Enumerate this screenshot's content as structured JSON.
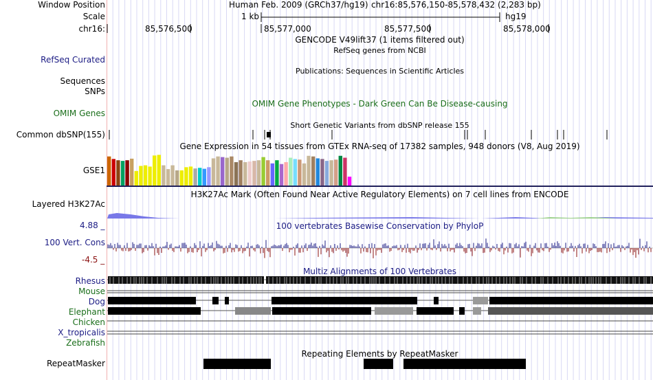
{
  "header": {
    "window_position_label": "Window Position",
    "assembly": "Human Feb. 2009 (GRCh37/hg19)",
    "position": "chr16:85,576,150-85,578,432 (2,283 bp)",
    "scale_label": "Scale",
    "scale_value": "1 kb",
    "scale_db": "hg19",
    "chrom_label": "chr16:",
    "ticks": [
      "85,576,500",
      "85,577,000",
      "85,577,500",
      "85,578,000"
    ]
  },
  "tracks": {
    "gencode": {
      "title": "GENCODE V49lift37 (1 items filtered out)"
    },
    "refseq": {
      "label": "RefSeq Curated",
      "title": "RefSeq genes from NCBI"
    },
    "publications": {
      "title": "Publications: Sequences in Scientific Articles",
      "label": "Sequences"
    },
    "snps": {
      "label": "SNPs"
    },
    "omim": {
      "label": "OMIM Genes",
      "title": "OMIM Gene Phenotypes - Dark Green Can Be Disease-causing"
    },
    "dbsnp": {
      "label": "Common dbSNP(155)",
      "title": "Short Genetic Variants from dbSNP release 155"
    },
    "gtex": {
      "label": "GSE1",
      "title": "Gene Expression in 54 tissues from GTEx RNA-seq of 17382 samples, 948 donors (V8, Aug 2019)",
      "values": [
        0.92,
        0.84,
        0.8,
        0.78,
        0.8,
        0.85,
        0.46,
        0.62,
        0.64,
        0.6,
        0.95,
        0.97,
        0.64,
        0.52,
        0.64,
        0.48,
        0.48,
        0.58,
        0.6,
        0.54,
        0.56,
        0.53,
        0.58,
        0.86,
        0.92,
        0.9,
        0.88,
        0.92,
        0.74,
        0.8,
        0.74,
        0.76,
        0.78,
        0.8,
        0.9,
        0.8,
        0.7,
        0.8,
        0.68,
        0.74,
        0.88,
        0.84,
        0.82,
        0.7,
        0.94,
        0.92,
        0.86,
        0.84,
        0.78,
        0.8,
        0.82,
        0.94,
        0.88,
        0.28
      ],
      "colors": [
        "#cc6600",
        "#cc0000",
        "#8b4513",
        "#00a060",
        "#8b0000",
        "#c8a060",
        "#eeee00",
        "#eeee00",
        "#eeee00",
        "#eeee00",
        "#eeee00",
        "#eeee00",
        "#c8b89a",
        "#c8b89a",
        "#c8b89a",
        "#b8a888",
        "#eeee00",
        "#eeee00",
        "#eeee00",
        "#aaaaaa",
        "#00cccc",
        "#3399ff",
        "#9999ff",
        "#c8b89a",
        "#c8b89a",
        "#9966cc",
        "#b8a888",
        "#aa8866",
        "#8b7355",
        "#a08060",
        "#c8b89a",
        "#eecccc",
        "#d8b8a8",
        "#c8b89a",
        "#99cc33",
        "#cc9966",
        "#6666ff",
        "#00aa44",
        "#aa66cc",
        "#ffaaaa",
        "#aaeebb",
        "#77ddff",
        "#cc9977",
        "#c8b89a",
        "#c8b89a",
        "#a08060",
        "#2288dd",
        "#886688",
        "#88aadd",
        "#c8b89a",
        "#d4a088",
        "#008844",
        "#cc3366",
        "#ff00ff"
      ]
    },
    "h3k27ac": {
      "label": "Layered H3K27Ac",
      "title": "H3K27Ac Mark (Often Found Near Active Regulatory Elements) on 7 cell lines from ENCODE"
    },
    "phylop": {
      "label": "100 Vert. Cons",
      "title": "100 vertebrates Basewise Conservation by PhyloP",
      "max": "4.88 _",
      "min": "-4.5 _"
    },
    "multiz": {
      "title": "Multiz Alignments of 100 Vertebrates",
      "species": [
        "Rhesus",
        "Mouse",
        "Dog",
        "Elephant",
        "Chicken",
        "X_tropicalis",
        "Zebrafish"
      ]
    },
    "repeatmasker": {
      "label": "RepeatMasker",
      "title": "Repeating Elements by RepeatMasker"
    }
  },
  "colors": {
    "grid": "#d8d8f4",
    "divider": "#20205a",
    "phylop_pos": "#1b1b84",
    "phylop_neg": "#8a1010"
  }
}
